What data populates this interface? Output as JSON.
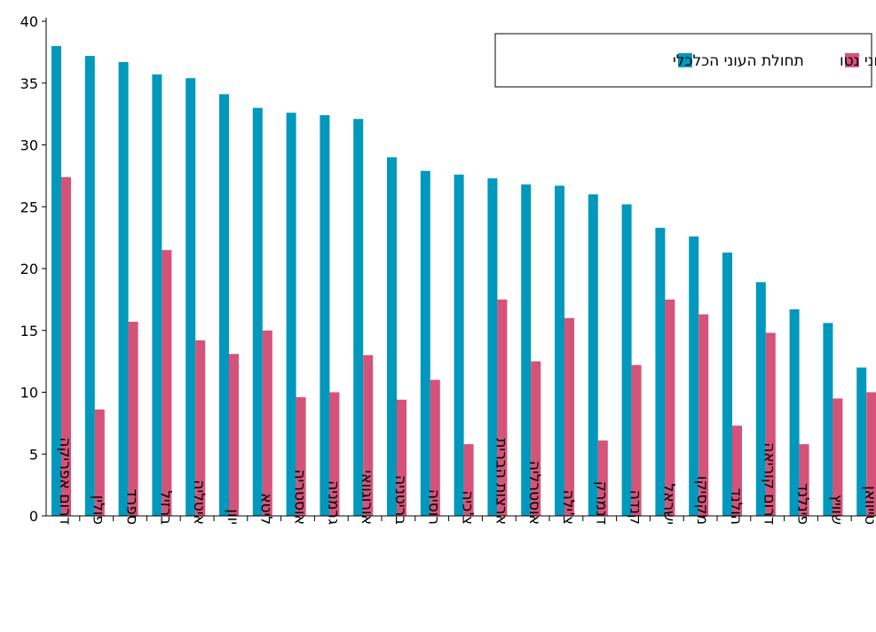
{
  "chart_data": {
    "type": "bar",
    "categories": [
      "דרום אפריקה",
      "פולין",
      "ספרד",
      "ברזיל",
      "איטליה",
      "יוון",
      "ליטא",
      "אוסטריה",
      "גרמניה",
      "אורוגוואי",
      "בריטניה",
      "רוסיה",
      "צ'כיה",
      "ארצות הברית",
      "אוסטרליה",
      "צ'ילה",
      "דנמרק",
      "קנדה",
      "ישראל",
      "מקסיקו",
      "הולנד",
      "דרום קוריאה",
      "פינלנד",
      "שוויץ",
      "טייוואן"
    ],
    "series": [
      {
        "name": "תחולת העוני הכלכלי",
        "color": "#0098bd",
        "values": [
          38.0,
          37.2,
          36.7,
          35.7,
          35.4,
          34.1,
          33.0,
          32.6,
          32.4,
          32.1,
          29.0,
          27.9,
          27.6,
          27.3,
          26.8,
          26.7,
          26.0,
          25.2,
          23.3,
          22.6,
          21.3,
          18.9,
          16.7,
          15.6,
          12.0
        ]
      },
      {
        "name": "תחולת העוני נטו",
        "color": "#d55379",
        "values": [
          27.4,
          8.6,
          15.7,
          21.5,
          14.2,
          13.1,
          15.0,
          9.6,
          10.0,
          13.0,
          9.4,
          11.0,
          5.8,
          17.5,
          12.5,
          16.0,
          6.1,
          12.2,
          17.5,
          16.3,
          7.3,
          14.8,
          5.8,
          9.5,
          10.0
        ]
      }
    ],
    "xlabel": "",
    "ylabel": "",
    "ylim": [
      0,
      40
    ],
    "yticks": [
      0,
      5,
      10,
      15,
      20,
      25,
      30,
      35,
      40
    ],
    "grid": false,
    "legend_position": "top-right"
  }
}
